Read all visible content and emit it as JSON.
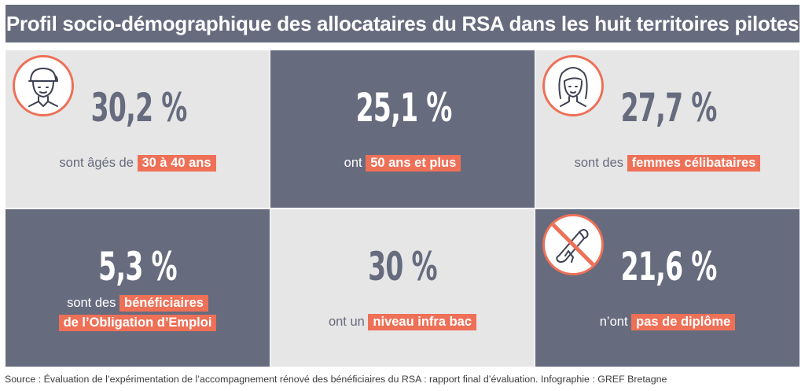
{
  "title": "Profil socio-démographique des allocataires du RSA dans les huit territoires pilotes",
  "tiles": [
    {
      "value": "30,2 %",
      "caption_pre": "sont âgés de",
      "highlight": "30 à 40 ans",
      "icon": "young-man-icon"
    },
    {
      "value": "25,1 %",
      "caption_pre": "ont",
      "highlight": "50 ans et plus"
    },
    {
      "value": "27,7 %",
      "caption_pre": "sont des",
      "highlight": "femmes célibataires",
      "icon": "woman-icon"
    },
    {
      "value": "5,3 %",
      "caption_pre": "sont des",
      "highlight_line1": "bénéficiaires",
      "highlight_line2": "de l’Obligation d’Emploi"
    },
    {
      "value": "30 %",
      "caption_pre": "ont un",
      "highlight": "niveau infra bac"
    },
    {
      "value": "21,6 %",
      "caption_pre": "n’ont",
      "highlight": "pas de diplôme",
      "icon": "no-diploma-icon"
    }
  ],
  "colors": {
    "dark": "#676b7e",
    "light": "#e6e6e6",
    "accent": "#ee7057"
  },
  "source": "Source : Évaluation de l’expérimentation de l’accompagnement rénové des bénéficiaires du RSA : rapport final d’évaluation. Infographie : GREF Bretagne"
}
